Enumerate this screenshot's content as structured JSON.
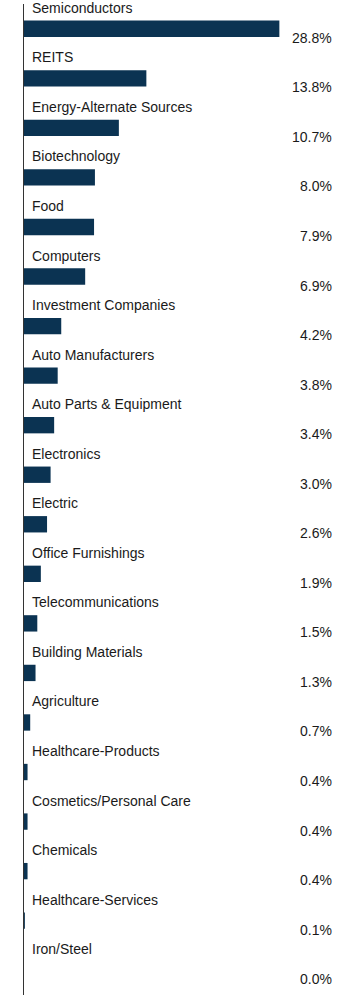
{
  "chart_data": {
    "type": "bar",
    "orientation": "horizontal",
    "categories": [
      "Semiconductors",
      "REITS",
      "Energy-Alternate Sources",
      "Biotechnology",
      "Food",
      "Computers",
      "Investment Companies",
      "Auto Manufacturers",
      "Auto Parts & Equipment",
      "Electronics",
      "Electric",
      "Office Furnishings",
      "Telecommunications",
      "Building Materials",
      "Agriculture",
      "Healthcare-Products",
      "Cosmetics/Personal Care",
      "Chemicals",
      "Healthcare-Services",
      "Iron/Steel"
    ],
    "values": [
      28.8,
      13.8,
      10.7,
      8.0,
      7.9,
      6.9,
      4.2,
      3.8,
      3.4,
      3.0,
      2.6,
      1.9,
      1.5,
      1.3,
      0.7,
      0.4,
      0.4,
      0.4,
      0.1,
      0.0
    ],
    "value_labels": [
      "28.8%",
      "13.8%",
      "10.7%",
      "8.0%",
      "7.9%",
      "6.9%",
      "4.2%",
      "3.8%",
      "3.4%",
      "3.0%",
      "2.6%",
      "1.9%",
      "1.5%",
      "1.3%",
      "0.7%",
      "0.4%",
      "0.4%",
      "0.4%",
      "0.1%",
      "0.0%"
    ],
    "color": "#0b3352",
    "xlim": [
      0,
      30
    ],
    "data_labels": true,
    "tick_labels": false,
    "grid": false
  }
}
